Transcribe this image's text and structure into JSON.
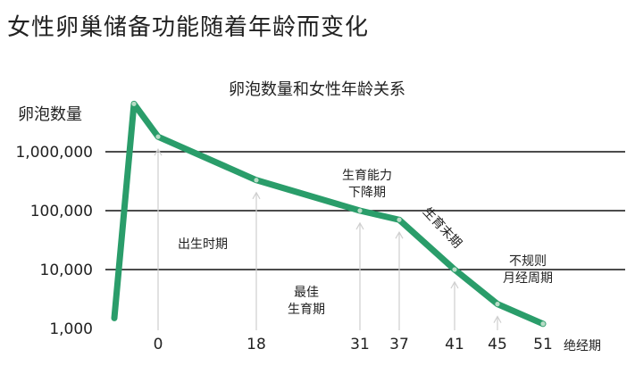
{
  "page": {
    "title": "女性卵巢储备功能随着年龄而变化"
  },
  "chart_data": {
    "type": "line",
    "title": "卵泡数量和女性年龄关系",
    "ylabel": "卵泡数量",
    "xlabel": "",
    "y_scale": "log",
    "ylim": [
      1000,
      10000000
    ],
    "y_ticks": [
      {
        "value": 1000000,
        "label": "1,000,000"
      },
      {
        "value": 100000,
        "label": "100,000"
      },
      {
        "value": 10000,
        "label": "10,000"
      },
      {
        "value": 1000,
        "label": "1,000"
      }
    ],
    "x_ticks": [
      "0",
      "18",
      "31",
      "37",
      "41",
      "45",
      "51"
    ],
    "series": [
      {
        "color": "#2a9d6a",
        "points": [
          {
            "x": "start",
            "y": 1500
          },
          {
            "x": "peak",
            "y": 6500000
          },
          {
            "x": "0",
            "y": 1800000
          },
          {
            "x": "18",
            "y": 330000
          },
          {
            "x": "31",
            "y": 100000
          },
          {
            "x": "37",
            "y": 70000
          },
          {
            "x": "41",
            "y": 10000
          },
          {
            "x": "45",
            "y": 2600
          },
          {
            "x": "51",
            "y": 1200
          }
        ]
      }
    ],
    "annotations": [
      {
        "text": "出生时期",
        "at": "0"
      },
      {
        "text": "最佳\n生育期",
        "at": "18"
      },
      {
        "text": "生育能力\n下降期",
        "at": "31"
      },
      {
        "text": "生育末期",
        "at": "37"
      },
      {
        "text": "不规则\n月经周期",
        "at": "45"
      },
      {
        "text": "绝经期",
        "at": "51"
      }
    ],
    "grid": true,
    "legend": "none",
    "colors": {
      "line": "#2a9d6a",
      "marker": "#b7dcc6",
      "arrow": "#cfcfcf",
      "grid": "#111111"
    }
  }
}
